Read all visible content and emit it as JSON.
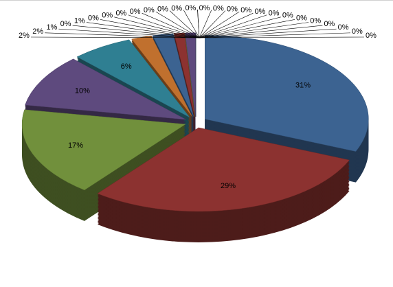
{
  "chart_data": {
    "type": "pie",
    "values": [
      31,
      29,
      17,
      10,
      6,
      2,
      2,
      1,
      0,
      1,
      0,
      0,
      0,
      0,
      0,
      0,
      0,
      0,
      0,
      0,
      0,
      0,
      0,
      0,
      0,
      0,
      0,
      0,
      0,
      0,
      0
    ],
    "value_labels": [
      "31%",
      "29%",
      "17%",
      "10%",
      "6%",
      "2%",
      "2%",
      "1%",
      "0%",
      "1%",
      "0%",
      "0%",
      "0%",
      "0%",
      "0%",
      "0%",
      "0%",
      "0%",
      "0%",
      "0%",
      "0%",
      "0%",
      "0%",
      "0%",
      "0%",
      "0%",
      "0%",
      "0%",
      "0%",
      "0%",
      "0%"
    ],
    "colors": [
      "#3c6391",
      "#8c3230",
      "#71903c",
      "#5e4a7e",
      "#2f7f92",
      "#c0702e"
    ]
  }
}
